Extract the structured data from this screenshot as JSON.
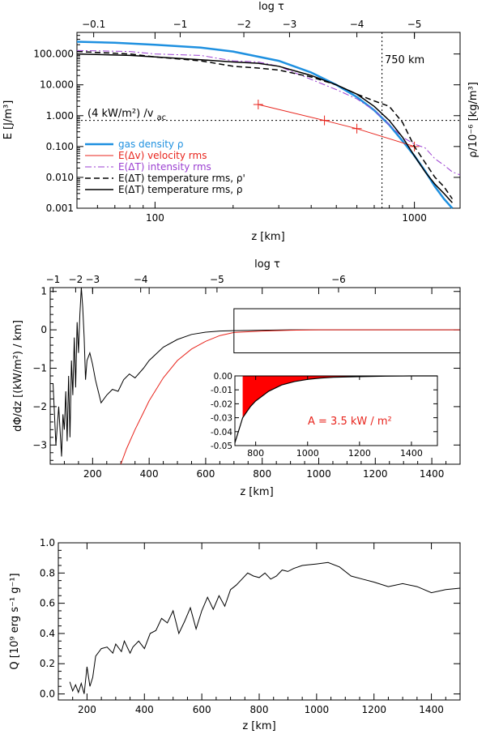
{
  "chart_data": [
    {
      "id": "panel-a",
      "type": "line",
      "xscale": "log",
      "yscale": "log",
      "xlim": [
        50,
        1500
      ],
      "ylim": [
        0.001,
        500
      ],
      "xlabel": "z [km]",
      "ylabel": "E [J/m³]",
      "ylabel_right": "ρ/10⁻⁶ [kg/m³]",
      "top_axis_label": "log τ",
      "top_ticks": [
        {
          "label": "−0.1",
          "z": 58
        },
        {
          "label": "−1",
          "z": 125
        },
        {
          "label": "−2",
          "z": 220
        },
        {
          "label": "−3",
          "z": 330
        },
        {
          "label": "−4",
          "z": 600
        },
        {
          "label": "−5",
          "z": 1000
        }
      ],
      "x_ticks": [
        {
          "v": 100,
          "label": "100"
        },
        {
          "v": 1000,
          "label": "1000"
        }
      ],
      "y_ticks": [
        {
          "v": 100,
          "label": "100.000"
        },
        {
          "v": 10,
          "label": "10.000"
        },
        {
          "v": 1,
          "label": "1.000"
        },
        {
          "v": 0.1,
          "label": "0.100"
        },
        {
          "v": 0.01,
          "label": "0.010"
        },
        {
          "v": 0.001,
          "label": "0.001"
        }
      ],
      "annotation_height": "750 km",
      "annotation_flux_main": "(4 kW/m²) /v",
      "annotation_flux_sub": "ac",
      "vline_z": 750,
      "hline_y": 0.7,
      "legend": [
        {
          "label": "gas density ρ",
          "color": "#1e90e0"
        },
        {
          "label": "E(Δv) velocity rms",
          "color": "#e8241c"
        },
        {
          "label": "E(ΔT) intensity rms",
          "color": "#9b3fd1"
        },
        {
          "label": "E(ΔT) temperature rms, ρ'",
          "color": "#000000"
        },
        {
          "label": "E(ΔT) temperature rms, ρ",
          "color": "#000000"
        }
      ],
      "series": [
        {
          "name": "gas density ρ",
          "color": "#1e90e0",
          "style": "solid",
          "width": 2.5,
          "x": [
            50,
            70,
            100,
            150,
            200,
            300,
            400,
            500,
            600,
            700,
            800,
            900,
            1000,
            1100,
            1200,
            1300,
            1400
          ],
          "y": [
            250,
            230,
            200,
            160,
            120,
            60,
            25,
            10,
            4,
            1.5,
            0.5,
            0.15,
            0.05,
            0.016,
            0.005,
            0.002,
            0.001
          ]
        },
        {
          "name": "E(Δv) velocity rms",
          "color": "#e8241c",
          "style": "solid",
          "width": 1,
          "x": [
            250,
            450,
            600,
            1000
          ],
          "y": [
            2.3,
            0.7,
            0.38,
            0.1
          ],
          "markers": true
        },
        {
          "name": "E(ΔT) intensity rms",
          "color": "#9b3fd1",
          "style": "dashdot",
          "width": 1,
          "x": [
            50,
            80,
            100,
            150,
            200,
            250,
            300,
            400,
            500,
            600,
            700,
            800,
            900,
            1000,
            1100,
            1200,
            1300,
            1400,
            1500
          ],
          "y": [
            130,
            120,
            100,
            90,
            60,
            55,
            40,
            15,
            7,
            3.5,
            1.5,
            0.5,
            0.2,
            0.12,
            0.09,
            0.04,
            0.025,
            0.015,
            0.012
          ]
        },
        {
          "name": "E(ΔT) temperature rms, ρ'",
          "color": "#000000",
          "style": "dashed",
          "width": 1.5,
          "x": [
            50,
            80,
            100,
            150,
            200,
            250,
            300,
            400,
            500,
            600,
            700,
            800,
            900,
            1000,
            1100,
            1200,
            1300,
            1400
          ],
          "y": [
            120,
            100,
            80,
            60,
            40,
            35,
            30,
            18,
            10,
            5,
            3,
            2,
            0.6,
            0.1,
            0.03,
            0.01,
            0.005,
            0.002
          ]
        },
        {
          "name": "E(ΔT) temperature rms, ρ",
          "color": "#000000",
          "style": "solid",
          "width": 1.5,
          "x": [
            50,
            80,
            100,
            150,
            200,
            250,
            300,
            400,
            500,
            600,
            700,
            800,
            900,
            1000,
            1100,
            1200,
            1300,
            1400
          ],
          "y": [
            100,
            90,
            80,
            65,
            55,
            50,
            40,
            20,
            10,
            5,
            2,
            0.7,
            0.2,
            0.05,
            0.015,
            0.006,
            0.003,
            0.0015
          ]
        }
      ]
    },
    {
      "id": "panel-b",
      "type": "line",
      "xscale": "linear",
      "yscale": "linear",
      "xlim": [
        50,
        1500
      ],
      "ylim": [
        -3.5,
        1.1
      ],
      "xlabel": "z [km]",
      "ylabel": "dΦ/dz [(kW/m²) / km]",
      "top_axis_label": "log τ",
      "top_ticks": [
        {
          "label": "−1",
          "z": 60
        },
        {
          "label": "−2",
          "z": 140
        },
        {
          "label": "−3",
          "z": 200
        },
        {
          "label": "−4",
          "z": 370
        },
        {
          "label": "−5",
          "z": 640
        },
        {
          "label": "−6",
          "z": 1070
        }
      ],
      "x_ticks": [
        {
          "v": 200,
          "label": "200"
        },
        {
          "v": 400,
          "label": "400"
        },
        {
          "v": 600,
          "label": "600"
        },
        {
          "v": 800,
          "label": "800"
        },
        {
          "v": 1000,
          "label": "1000"
        },
        {
          "v": 1200,
          "label": "1200"
        },
        {
          "v": 1400,
          "label": "1400"
        }
      ],
      "y_ticks": [
        {
          "v": 1,
          "label": "1"
        },
        {
          "v": 0,
          "label": "0"
        },
        {
          "v": -1,
          "label": "−1"
        },
        {
          "v": -2,
          "label": "−2"
        },
        {
          "v": -3,
          "label": "−3"
        }
      ],
      "box_x": [
        700,
        1500
      ],
      "box_y": [
        -0.6,
        0.55
      ],
      "series": [
        {
          "name": "black",
          "color": "#000000",
          "x": [
            60,
            70,
            80,
            90,
            95,
            100,
            105,
            110,
            115,
            120,
            125,
            130,
            135,
            140,
            145,
            150,
            155,
            160,
            165,
            170,
            175,
            180,
            190,
            200,
            210,
            220,
            230,
            250,
            270,
            290,
            310,
            330,
            350,
            380,
            400,
            450,
            500,
            550,
            600,
            650,
            700,
            800,
            900,
            1000,
            1200,
            1500
          ],
          "y": [
            -1.4,
            -3.0,
            -2.0,
            -3.3,
            -2.2,
            -2.6,
            -1.6,
            -2.9,
            -1.2,
            -2.8,
            -0.8,
            -1.7,
            -0.2,
            -1.5,
            0.2,
            -0.6,
            0.4,
            1.1,
            0.6,
            -0.2,
            -1.3,
            -0.8,
            -0.6,
            -0.9,
            -1.3,
            -1.6,
            -1.9,
            -1.7,
            -1.55,
            -1.6,
            -1.3,
            -1.15,
            -1.25,
            -1.0,
            -0.8,
            -0.45,
            -0.25,
            -0.12,
            -0.06,
            -0.03,
            -0.02,
            -0.01,
            0,
            0,
            0,
            0
          ]
        },
        {
          "name": "red",
          "color": "#e8241c",
          "x": [
            300,
            320,
            350,
            380,
            400,
            450,
            500,
            550,
            600,
            650,
            700,
            800,
            900,
            1000,
            1200,
            1500
          ],
          "y": [
            -3.5,
            -3.1,
            -2.6,
            -2.15,
            -1.85,
            -1.25,
            -0.8,
            -0.5,
            -0.3,
            -0.15,
            -0.07,
            -0.03,
            -0.01,
            0,
            0,
            0
          ]
        }
      ],
      "inset": {
        "xlim": [
          720,
          1500
        ],
        "ylim": [
          -0.05,
          0
        ],
        "x_ticks": [
          {
            "v": 800,
            "label": "800"
          },
          {
            "v": 1000,
            "label": "1000"
          },
          {
            "v": 1200,
            "label": "1200"
          },
          {
            "v": 1400,
            "label": "1400"
          }
        ],
        "y_ticks": [
          {
            "v": 0,
            "label": "0.00"
          },
          {
            "v": -0.01,
            "label": "-0.01"
          },
          {
            "v": -0.02,
            "label": "-0.02"
          },
          {
            "v": -0.03,
            "label": "-0.03"
          },
          {
            "v": -0.04,
            "label": "-0.04"
          },
          {
            "v": -0.05,
            "label": "-0.05"
          }
        ],
        "fill_from_x": 750,
        "annotation": "A = 3.5 kW / m²",
        "x": [
          720,
          730,
          740,
          750,
          780,
          800,
          850,
          900,
          950,
          1000,
          1050,
          1100,
          1200,
          1300,
          1400,
          1500
        ],
        "y": [
          -0.048,
          -0.042,
          -0.036,
          -0.03,
          -0.022,
          -0.018,
          -0.011,
          -0.0065,
          -0.004,
          -0.0025,
          -0.0015,
          -0.001,
          -0.0005,
          -0.0002,
          0,
          0
        ]
      }
    },
    {
      "id": "panel-c",
      "type": "line",
      "xscale": "linear",
      "yscale": "linear",
      "xlim": [
        100,
        1500
      ],
      "ylim": [
        -0.04,
        1.0
      ],
      "xlabel": "z [km]",
      "ylabel": "Q [10⁹ erg s⁻¹ g⁻¹]",
      "x_ticks": [
        {
          "v": 200,
          "label": "200"
        },
        {
          "v": 400,
          "label": "400"
        },
        {
          "v": 600,
          "label": "600"
        },
        {
          "v": 800,
          "label": "800"
        },
        {
          "v": 1000,
          "label": "1000"
        },
        {
          "v": 1200,
          "label": "1200"
        },
        {
          "v": 1400,
          "label": "1400"
        }
      ],
      "y_ticks": [
        {
          "v": 0,
          "label": "0.0"
        },
        {
          "v": 0.2,
          "label": "0.2"
        },
        {
          "v": 0.4,
          "label": "0.4"
        },
        {
          "v": 0.6,
          "label": "0.6"
        },
        {
          "v": 0.8,
          "label": "0.8"
        },
        {
          "v": 1.0,
          "label": "1.0"
        }
      ],
      "series": [
        {
          "name": "Q",
          "color": "#000000",
          "x": [
            140,
            150,
            160,
            170,
            180,
            190,
            200,
            210,
            220,
            230,
            250,
            270,
            290,
            300,
            320,
            330,
            350,
            360,
            380,
            400,
            420,
            440,
            460,
            480,
            500,
            520,
            540,
            560,
            580,
            600,
            620,
            640,
            660,
            680,
            700,
            720,
            740,
            760,
            780,
            800,
            820,
            840,
            860,
            880,
            900,
            920,
            950,
            1000,
            1040,
            1080,
            1120,
            1160,
            1200,
            1250,
            1300,
            1350,
            1400,
            1450,
            1500
          ],
          "y": [
            0.08,
            0.02,
            0.06,
            0.01,
            0.07,
            0.0,
            0.18,
            0.05,
            0.11,
            0.25,
            0.3,
            0.31,
            0.27,
            0.33,
            0.28,
            0.35,
            0.27,
            0.31,
            0.35,
            0.3,
            0.4,
            0.42,
            0.5,
            0.47,
            0.55,
            0.4,
            0.48,
            0.57,
            0.43,
            0.55,
            0.64,
            0.56,
            0.65,
            0.58,
            0.69,
            0.72,
            0.76,
            0.8,
            0.78,
            0.77,
            0.8,
            0.76,
            0.78,
            0.82,
            0.81,
            0.83,
            0.85,
            0.86,
            0.87,
            0.84,
            0.78,
            0.76,
            0.74,
            0.71,
            0.73,
            0.71,
            0.67,
            0.69,
            0.7
          ]
        }
      ]
    }
  ]
}
